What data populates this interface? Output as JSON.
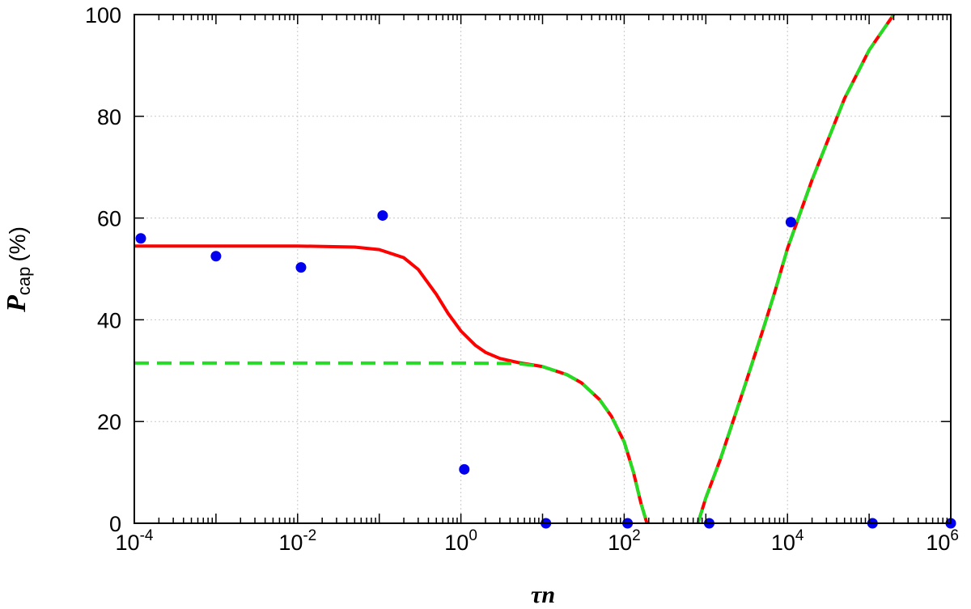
{
  "chart_data": {
    "type": "line",
    "xlabel_symbol": "τn",
    "ylabel_symbol": "P",
    "ylabel_subscript": "cap",
    "ylabel_unit": "(%)",
    "x_scale": "log",
    "xlim": [
      0.0001,
      1000000
    ],
    "ylim": [
      0,
      100
    ],
    "grid": true,
    "x_ticks": [
      {
        "value": 0.0001,
        "base": "10",
        "exp": "-4"
      },
      {
        "value": 0.01,
        "base": "10",
        "exp": "-2"
      },
      {
        "value": 1,
        "base": "10",
        "exp": "0"
      },
      {
        "value": 100,
        "base": "10",
        "exp": "2"
      },
      {
        "value": 10000,
        "base": "10",
        "exp": "4"
      },
      {
        "value": 1000000,
        "base": "10",
        "exp": "6"
      }
    ],
    "y_ticks": [
      "0",
      "20",
      "40",
      "60",
      "80",
      "100"
    ],
    "series": [
      {
        "style": "solid",
        "color": "#ff0000",
        "segments": [
          [
            [
              0.0001,
              54.5
            ],
            [
              0.001,
              54.5
            ],
            [
              0.01,
              54.5
            ],
            [
              0.05,
              54.3
            ],
            [
              0.1,
              53.8
            ],
            [
              0.2,
              52.2
            ],
            [
              0.3,
              49.9
            ],
            [
              0.5,
              45.0
            ],
            [
              0.7,
              41.2
            ],
            [
              1,
              37.8
            ],
            [
              1.5,
              35.0
            ],
            [
              2,
              33.6
            ],
            [
              3,
              32.4
            ],
            [
              5,
              31.6
            ],
            [
              10,
              30.8
            ],
            [
              20,
              29.2
            ],
            [
              30,
              27.6
            ],
            [
              50,
              24.3
            ],
            [
              70,
              21.0
            ],
            [
              100,
              16.0
            ],
            [
              130,
              10.0
            ],
            [
              160,
              4.0
            ],
            [
              190,
              0
            ]
          ],
          [
            [
              800,
              0
            ],
            [
              1000,
              5.0
            ],
            [
              1500,
              12.5
            ],
            [
              2000,
              18.5
            ],
            [
              3000,
              27.0
            ],
            [
              5000,
              38.0
            ],
            [
              7000,
              45.5
            ],
            [
              10000,
              54.0
            ],
            [
              20000,
              67.5
            ],
            [
              50000,
              83.5
            ],
            [
              100000,
              93.0
            ],
            [
              200000,
              100
            ]
          ]
        ]
      },
      {
        "style": "dashed",
        "color": "#22dd22",
        "segments": [
          [
            [
              0.0001,
              31.5
            ],
            [
              0.01,
              31.5
            ],
            [
              1,
              31.5
            ],
            [
              5,
              31.4
            ],
            [
              10,
              30.8
            ],
            [
              20,
              29.2
            ],
            [
              30,
              27.6
            ],
            [
              50,
              24.3
            ],
            [
              70,
              21.0
            ],
            [
              100,
              16.0
            ],
            [
              130,
              10.0
            ],
            [
              160,
              4.0
            ],
            [
              190,
              0
            ]
          ],
          [
            [
              800,
              0
            ],
            [
              1000,
              5.0
            ],
            [
              1500,
              12.5
            ],
            [
              2000,
              18.5
            ],
            [
              3000,
              27.0
            ],
            [
              5000,
              38.0
            ],
            [
              7000,
              45.5
            ],
            [
              10000,
              54.0
            ],
            [
              20000,
              67.5
            ],
            [
              50000,
              83.5
            ],
            [
              100000,
              93.0
            ],
            [
              200000,
              100
            ]
          ]
        ]
      }
    ],
    "points": {
      "color": "#0000ee",
      "values": [
        [
          0.00012,
          56.0
        ],
        [
          0.001,
          52.5
        ],
        [
          0.011,
          50.3
        ],
        [
          0.11,
          60.5
        ],
        [
          1.1,
          10.6
        ],
        [
          11,
          0
        ],
        [
          110,
          0
        ],
        [
          1100,
          0
        ],
        [
          11000,
          59.2
        ],
        [
          110000,
          0
        ],
        [
          1000000,
          0
        ]
      ]
    }
  }
}
